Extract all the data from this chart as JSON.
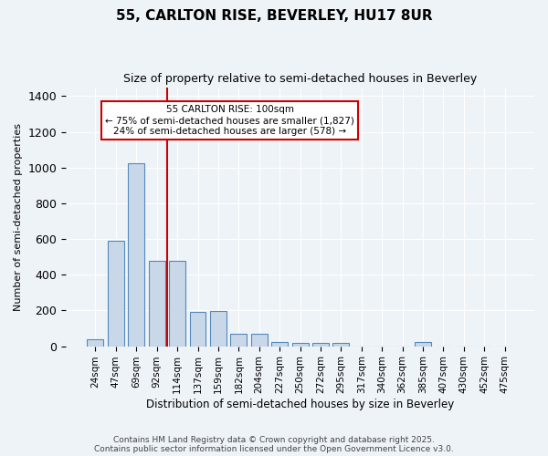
{
  "title_line1": "55, CARLTON RISE, BEVERLEY, HU17 8UR",
  "title_line2": "Size of property relative to semi-detached houses in Beverley",
  "xlabel": "Distribution of semi-detached houses by size in Beverley",
  "ylabel": "Number of semi-detached properties",
  "categories": [
    "24sqm",
    "47sqm",
    "69sqm",
    "92sqm",
    "114sqm",
    "137sqm",
    "159sqm",
    "182sqm",
    "204sqm",
    "227sqm",
    "250sqm",
    "272sqm",
    "295sqm",
    "317sqm",
    "340sqm",
    "362sqm",
    "385sqm",
    "407sqm",
    "430sqm",
    "452sqm",
    "475sqm"
  ],
  "values": [
    40,
    590,
    1025,
    480,
    480,
    190,
    195,
    70,
    70,
    25,
    20,
    20,
    20,
    0,
    0,
    0,
    25,
    0,
    0,
    0,
    0
  ],
  "bar_color": "#c8d8e8",
  "bar_edge_color": "#5588bb",
  "ref_line_x": 3,
  "ref_line_color": "#cc0000",
  "annotation_text": "55 CARLTON RISE: 100sqm\n← 75% of semi-detached houses are smaller (1,827)\n24% of semi-detached houses are larger (578) →",
  "annotation_box_color": "#ffffff",
  "annotation_box_edge_color": "#cc0000",
  "ylim": [
    0,
    1450
  ],
  "yticks": [
    0,
    200,
    400,
    600,
    800,
    1000,
    1200,
    1400
  ],
  "background_color": "#eef3f8",
  "grid_color": "#ffffff",
  "footer_line1": "Contains HM Land Registry data © Crown copyright and database right 2025.",
  "footer_line2": "Contains public sector information licensed under the Open Government Licence v3.0."
}
